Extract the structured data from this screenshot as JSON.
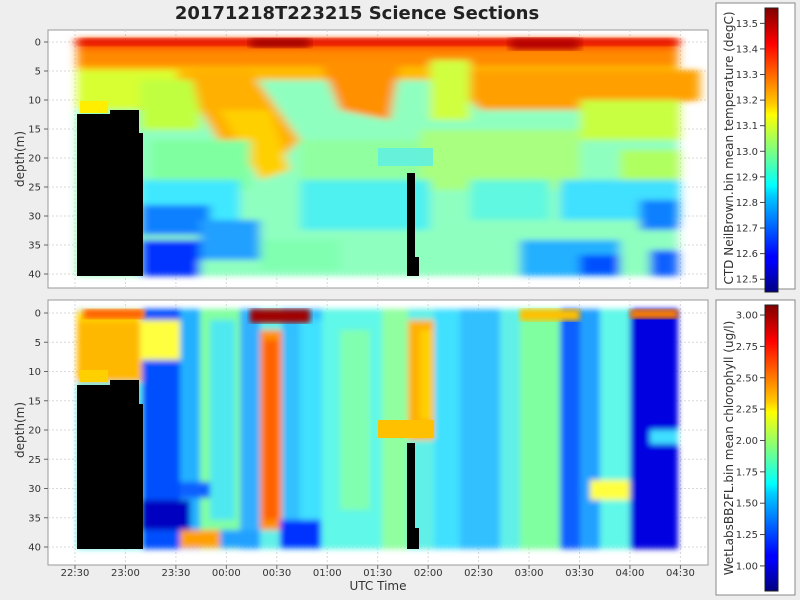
{
  "title": "20171218T223215 Science Sections",
  "x_axis_label": "UTC Time",
  "chart_data": [
    {
      "type": "heatmap",
      "name": "temperature-section",
      "xlabel": "UTC Time",
      "ylabel": "depth(m)",
      "x_ticks": [
        "22:30",
        "23:00",
        "23:30",
        "00:00",
        "00:30",
        "01:00",
        "01:30",
        "02:00",
        "02:30",
        "03:00",
        "03:30",
        "04:00",
        "04:30"
      ],
      "y_ticks": [
        0,
        5,
        10,
        15,
        20,
        25,
        30,
        35,
        40
      ],
      "ylim": [
        0,
        40
      ],
      "colorbar": {
        "label": "CTD NeilBrown.bin mean temperature (degC)",
        "ticks": [
          "12.5",
          "12.6",
          "12.7",
          "12.8",
          "12.9",
          "13.0",
          "13.1",
          "13.2",
          "13.3",
          "13.4",
          "13.5"
        ],
        "min": 12.45,
        "max": 13.56
      },
      "grid": true
    },
    {
      "type": "heatmap",
      "name": "chlorophyll-section",
      "xlabel": "UTC Time",
      "ylabel": "depth(m)",
      "x_ticks": [
        "22:30",
        "23:00",
        "23:30",
        "00:00",
        "00:30",
        "01:00",
        "01:30",
        "02:00",
        "02:30",
        "03:00",
        "03:30",
        "04:00",
        "04:30"
      ],
      "y_ticks": [
        0,
        5,
        10,
        15,
        20,
        25,
        30,
        35,
        40
      ],
      "ylim": [
        0,
        40
      ],
      "colorbar": {
        "label": "WetLabsBB2FL.bin mean chlorophyll (ug/l)",
        "ticks": [
          "1.00",
          "1.25",
          "1.50",
          "1.75",
          "2.00",
          "2.25",
          "2.50",
          "2.75",
          "3.00"
        ],
        "min": 0.8,
        "max": 3.08
      },
      "grid": true
    }
  ]
}
